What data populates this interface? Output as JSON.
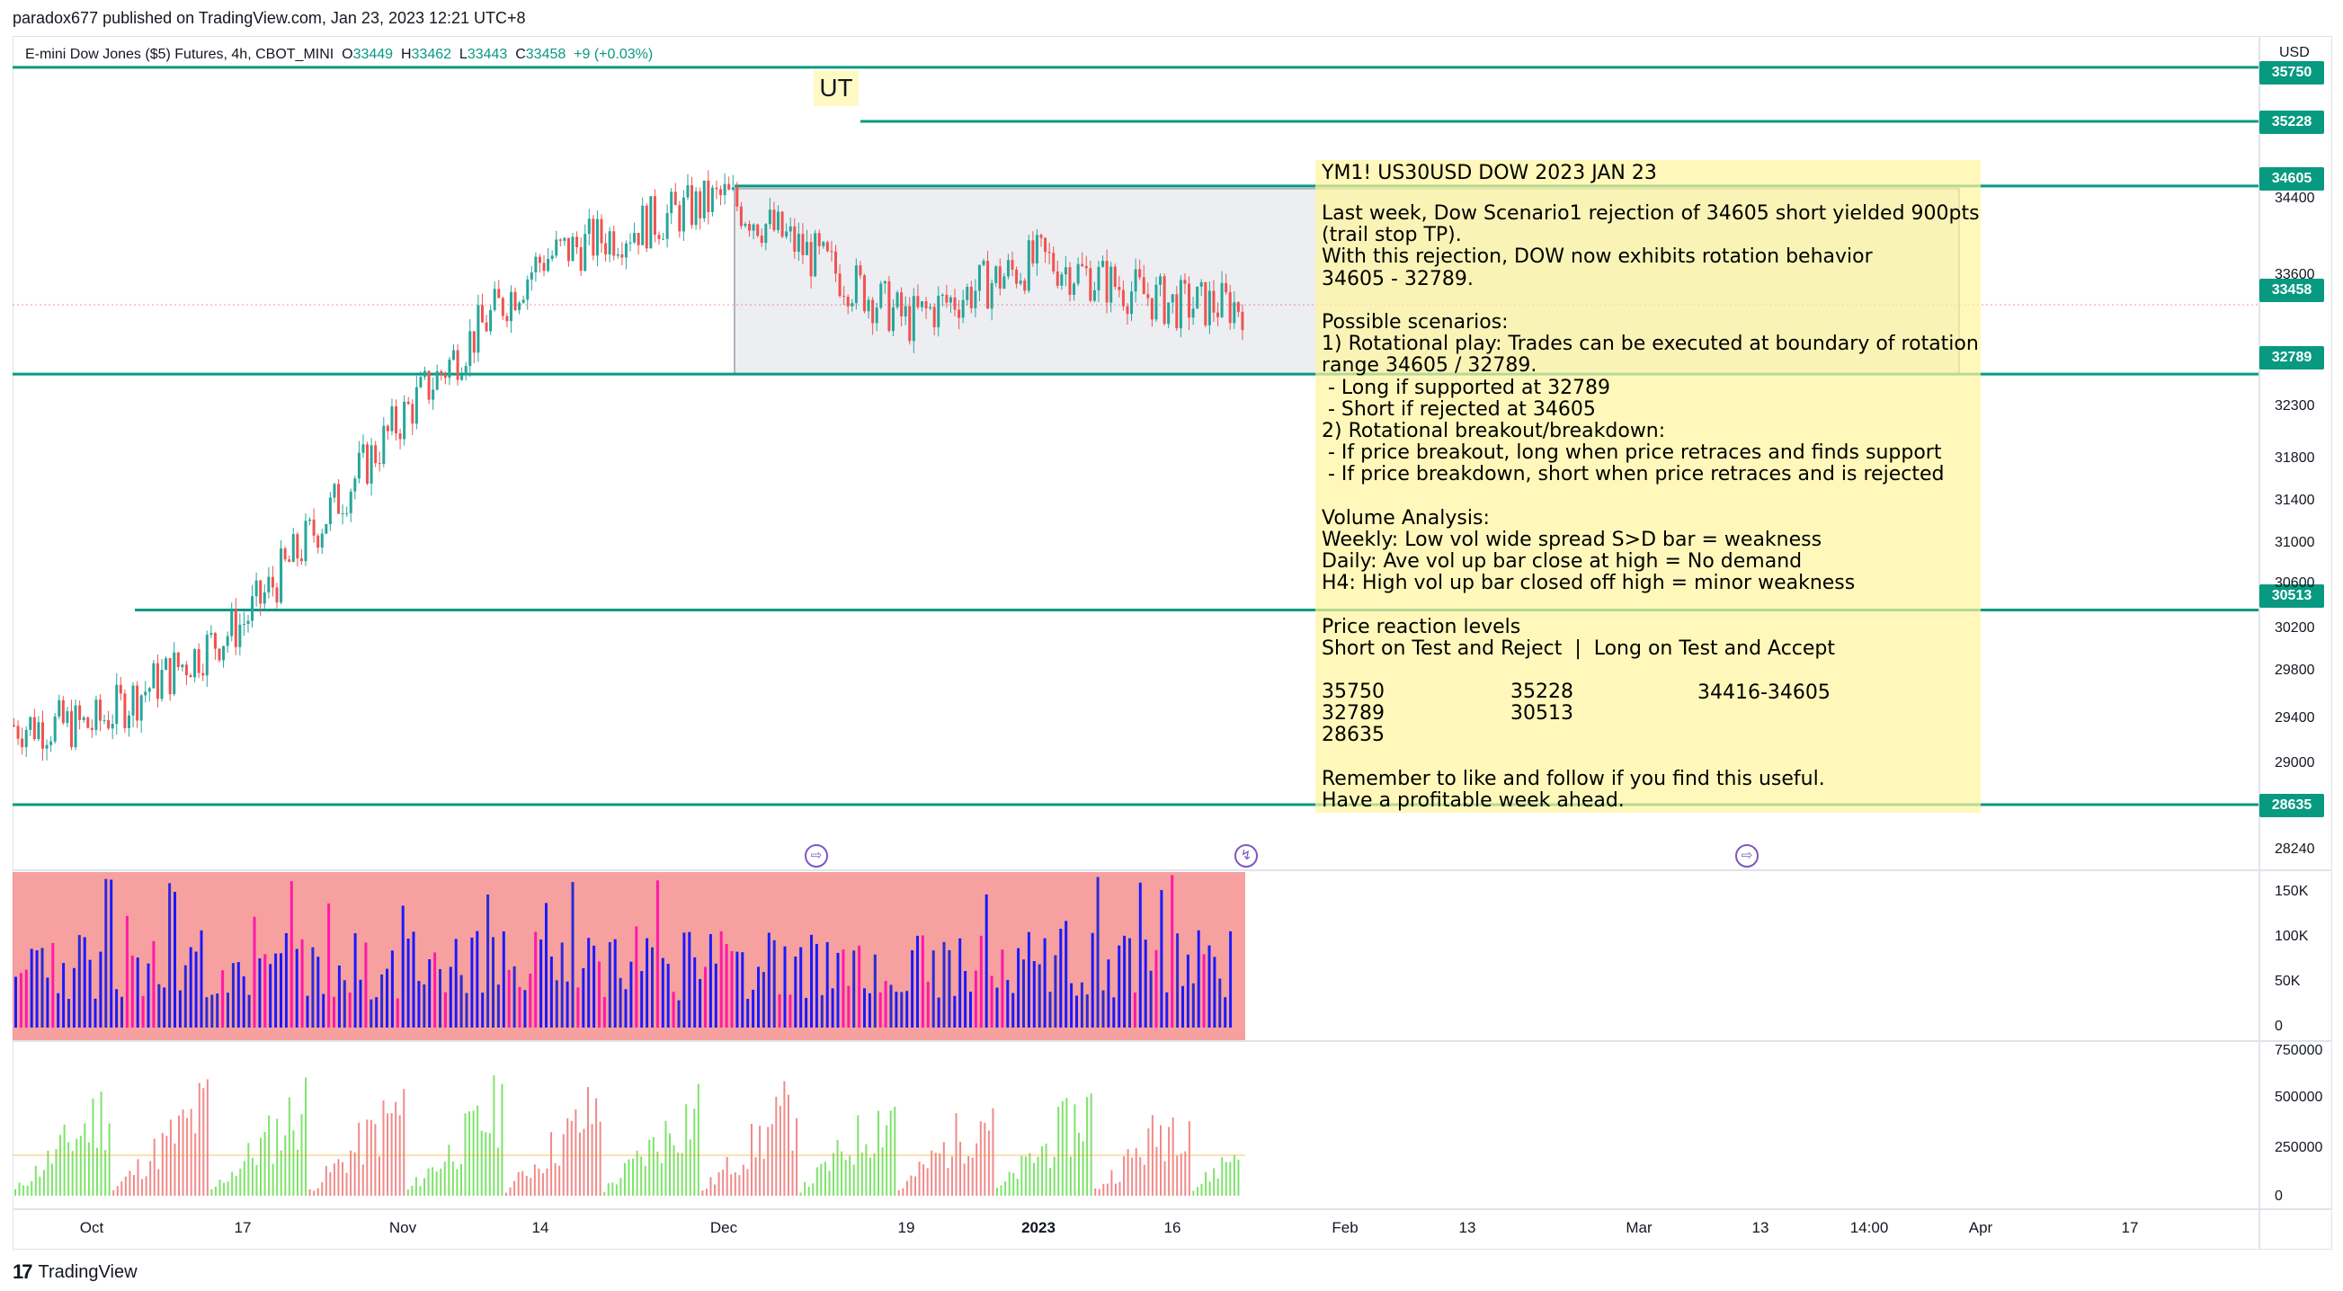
{
  "header": {
    "published": "paradox677 published on TradingView.com, Jan 23, 2023 12:21 UTC+8"
  },
  "legend": {
    "symbol": "E-mini Dow Jones ($5) Futures, 4h, CBOT_MINI",
    "o_label": "O",
    "o": "33449",
    "h_label": "H",
    "h": "33462",
    "l_label": "L",
    "l": "33443",
    "c_label": "C",
    "c": "33458",
    "change": "+9 (+0.03%)"
  },
  "currency": "USD",
  "annotation_ut": "UT",
  "note": {
    "title": "YM1! US30USD DOW 2023 JAN 23",
    "body": "Last week, Dow Scenario1 rejection of 34605 short yielded 900pts\n(trail stop TP).\nWith this rejection, DOW now exhibits rotation behavior\n34605 - 32789.\n\nPossible scenarios:\n1) Rotational play: Trades can be executed at boundary of rotation\nrange 34605 / 32789.\n - Long if supported at 32789\n - Short if rejected at 34605\n2) Rotational breakout/breakdown:\n - If price breakout, long when price retraces and finds support\n - If price breakdown, short when price retraces and is rejected\n\nVolume Analysis:\nWeekly: Low vol wide spread S>D bar = weakness\nDaily: Ave vol up bar close at high = No demand\nH4: High vol up bar closed off high = minor weakness\n\nPrice reaction levels\nShort on Test and Reject  |  Long on Test and Accept",
    "levels_col1": [
      "35750",
      "32789",
      "28635"
    ],
    "levels_col2": [
      "35228",
      "30513"
    ],
    "levels_col3": [
      "34416-34605"
    ],
    "closing": "Remember to like and follow if you find this useful.\nHave a profitable week ahead."
  },
  "price_tags": [
    "35750",
    "35228",
    "34605",
    "33458",
    "32789",
    "30513",
    "28635"
  ],
  "price_axis": [
    "34400",
    "33600",
    "32300",
    "31800",
    "31400",
    "31000",
    "30600",
    "30200",
    "29800",
    "29400",
    "29000",
    "28240"
  ],
  "volume_axis": [
    "150K",
    "100K",
    "50K",
    "0"
  ],
  "osc_axis": [
    "750000",
    "500000",
    "250000",
    "0"
  ],
  "time_axis": [
    "Oct",
    "17",
    "Nov",
    "14",
    "Dec",
    "19",
    "2023",
    "16",
    "Feb",
    "13",
    "Mar",
    "13",
    "14:00",
    "Apr",
    "17"
  ],
  "footer": {
    "brand": "TradingView",
    "logo": "tradingview-logo-icon"
  },
  "colors": {
    "level_line": "#089981",
    "up": "#26a69a",
    "down": "#ef5350",
    "note_bg": "#fff59d",
    "range_box": "#d1d4dc"
  },
  "chart_data": {
    "type": "line",
    "title": "E-mini Dow Jones ($5) Futures, 4h, CBOT_MINI",
    "x": [
      "Oct",
      "17",
      "Nov",
      "14",
      "Dec",
      "19",
      "2023",
      "16"
    ],
    "series": [
      {
        "values": [
          29400,
          30400,
          32400,
          33900,
          34500,
          33300,
          33900,
          33458
        ]
      }
    ],
    "horizontal_levels": [
      35750,
      35228,
      34605,
      32789,
      30513,
      28635
    ],
    "last_price": 33458,
    "range_box": [
      32789,
      34605
    ],
    "ylim": [
      28000,
      35900
    ]
  }
}
